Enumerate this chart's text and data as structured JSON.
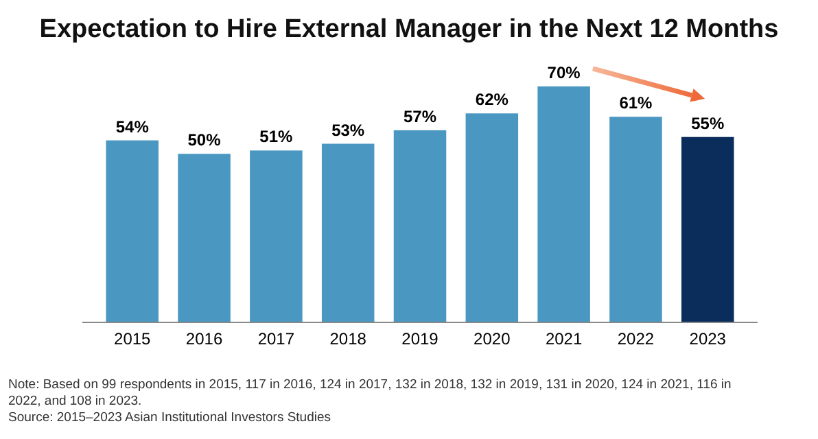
{
  "chart_data": {
    "type": "bar",
    "title": "Expectation to Hire External Manager in the Next 12 Months",
    "categories": [
      "2015",
      "2016",
      "2017",
      "2018",
      "2019",
      "2020",
      "2021",
      "2022",
      "2023"
    ],
    "values": [
      54,
      50,
      51,
      53,
      57,
      62,
      70,
      61,
      55
    ],
    "colors": [
      "#4a97c2",
      "#4a97c2",
      "#4a97c2",
      "#4a97c2",
      "#4a97c2",
      "#4a97c2",
      "#4a97c2",
      "#4a97c2",
      "#0b2d5b"
    ],
    "value_labels": [
      "54%",
      "50%",
      "51%",
      "53%",
      "57%",
      "62%",
      "70%",
      "61%",
      "55%"
    ],
    "annotations": [
      "Note: Based on 99 respondents in 2015, 117 in 2016, 124 in 2017, 132 in 2018, 132 in 2019, 131 in 2020, 124 in 2021, 116 in 2022, and 108 in 2023.",
      "Source: 2015–2023 Asian Institutional Investors Studies"
    ]
  }
}
